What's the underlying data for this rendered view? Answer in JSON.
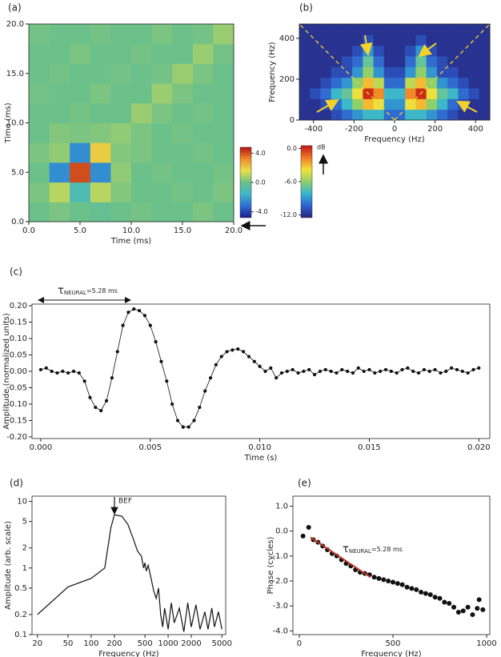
{
  "chart_data": [
    {
      "type": "heatmap",
      "panel_label": "(a)",
      "xlabel": "Time (ms)",
      "ylabel": "Time (ms)",
      "xlim": [
        0,
        20
      ],
      "ylim": [
        0,
        20
      ],
      "xticks": [
        {
          "value": 0,
          "label": "0.0"
        },
        {
          "value": 5,
          "label": "5.0"
        },
        {
          "value": 10,
          "label": "10.0"
        },
        {
          "value": 15,
          "label": "15.0"
        },
        {
          "value": 20,
          "label": "20.0"
        }
      ],
      "yticks": [
        {
          "value": 0,
          "label": "0.0"
        },
        {
          "value": 5,
          "label": "5.0"
        },
        {
          "value": 10,
          "label": "10.0"
        },
        {
          "value": 15,
          "label": "15.0"
        },
        {
          "value": 20,
          "label": "20.0"
        }
      ],
      "z": [
        [
          0,
          0.2,
          0,
          -0.2,
          0,
          0.1,
          0,
          0,
          0.2,
          0
        ],
        [
          0.2,
          1.0,
          -1.0,
          1.0,
          0.3,
          0,
          0,
          0.1,
          0,
          0.2
        ],
        [
          0,
          -2.5,
          4.0,
          -2.5,
          0.5,
          0,
          0.1,
          0,
          0,
          0.1
        ],
        [
          0.2,
          0.5,
          -2.5,
          2.0,
          0.3,
          0.2,
          0,
          0,
          0.1,
          0
        ],
        [
          0,
          0.3,
          0.2,
          0.3,
          0.5,
          0.2,
          0,
          0.1,
          0,
          0
        ],
        [
          0,
          0,
          0.1,
          0,
          0,
          0.6,
          0.2,
          0,
          0.1,
          0
        ],
        [
          0.1,
          0,
          0,
          0.2,
          0,
          0,
          0.6,
          0.2,
          0,
          0
        ],
        [
          0,
          0.1,
          0,
          0,
          0.1,
          0,
          0.1,
          0.6,
          0.2,
          0
        ],
        [
          0,
          0,
          0.2,
          0,
          0,
          0.1,
          0,
          0,
          0.6,
          0.1
        ],
        [
          0.1,
          0,
          0,
          0.1,
          0,
          0,
          0.2,
          0,
          0.1,
          0.6
        ]
      ],
      "colorbar": {
        "clim": [
          -4.8,
          4.8
        ],
        "colors": [
          "#1c1c8c",
          "#2a6fd6",
          "#3fb6c8",
          "#6cc08a",
          "#e6e24a",
          "#f08a2a",
          "#b01212"
        ],
        "ticks": [
          {
            "value": 4,
            "label": "4.0"
          },
          {
            "value": 0,
            "label": "0.0"
          },
          {
            "value": -4,
            "label": "-4.0"
          }
        ]
      }
    },
    {
      "type": "heatmap",
      "panel_label": "(b)",
      "xlabel": "Frequency (Hz)",
      "ylabel": "Frequency (Hz)",
      "xlim": [
        -470,
        470
      ],
      "ylim": [
        0,
        470
      ],
      "xticks": [
        -400,
        -200,
        0,
        200,
        400
      ],
      "yticks": [
        0,
        200,
        400
      ],
      "z": [
        [
          -12,
          -12,
          -12,
          -11,
          -10,
          -9,
          -8,
          -8,
          -10,
          -10,
          -8,
          -8,
          -9,
          -10,
          -11,
          -12,
          -12,
          -12
        ],
        [
          -12,
          -12,
          -11,
          -10,
          -8,
          -6,
          -3,
          -4,
          -9,
          -9,
          -4,
          -3,
          -6,
          -8,
          -10,
          -11,
          -12,
          -12
        ],
        [
          -12,
          -11,
          -10,
          -8,
          -7,
          -4,
          0,
          -2,
          -8,
          -8,
          -2,
          0,
          -4,
          -7,
          -8,
          -10,
          -11,
          -12
        ],
        [
          -12,
          -12,
          -11,
          -10,
          -9,
          -6,
          -3,
          -5,
          -10,
          -10,
          -5,
          -3,
          -6,
          -9,
          -10,
          -11,
          -12,
          -12
        ],
        [
          -12,
          -12,
          -12,
          -11,
          -11,
          -9,
          -6,
          -9,
          -11,
          -11,
          -9,
          -6,
          -9,
          -11,
          -11,
          -12,
          -12,
          -12
        ],
        [
          -12,
          -12,
          -12,
          -12,
          -11,
          -10,
          -7,
          -10,
          -12,
          -12,
          -10,
          -7,
          -10,
          -11,
          -12,
          -12,
          -12,
          -12
        ],
        [
          -12,
          -12,
          -12,
          -12,
          -12,
          -11,
          -9,
          -11,
          -12,
          -12,
          -11,
          -9,
          -11,
          -12,
          -12,
          -12,
          -12,
          -12
        ],
        [
          -12,
          -12,
          -12,
          -12,
          -12,
          -12,
          -11,
          -12,
          -12,
          -12,
          -12,
          -11,
          -12,
          -12,
          -12,
          -12,
          -12,
          -12
        ],
        [
          -12,
          -12,
          -12,
          -12,
          -12,
          -12,
          -12,
          -12,
          -12,
          -12,
          -12,
          -12,
          -12,
          -12,
          -12,
          -12,
          -12,
          -12
        ]
      ],
      "colorbar": {
        "clim": [
          -12.5,
          0.5
        ],
        "unit": "dB",
        "colors": [
          "#26267e",
          "#2f5fcf",
          "#35b6d0",
          "#8fd06a",
          "#f5e23a",
          "#f07a24",
          "#c01616"
        ],
        "ticks": [
          {
            "value": 0,
            "label": "0.0"
          },
          {
            "value": -6,
            "label": "-6.0"
          },
          {
            "value": -12,
            "label": "-12.0"
          }
        ]
      }
    },
    {
      "type": "line",
      "panel_label": "(c)",
      "xlabel": "Time (s)",
      "ylabel": "Amplitude (normalized units)",
      "markers": true,
      "color": "#111111",
      "annotation": {
        "symbol": "τ",
        "subscript": "NEURAL",
        "text": "=5.28 ms"
      },
      "xlim": [
        -0.0004,
        0.0205
      ],
      "ylim": [
        -0.205,
        0.205
      ],
      "xticks": [
        {
          "value": 0,
          "label": "0.000"
        },
        {
          "value": 0.005,
          "label": "0.005"
        },
        {
          "value": 0.01,
          "label": "0.010"
        },
        {
          "value": 0.015,
          "label": "0.015"
        },
        {
          "value": 0.02,
          "label": "0.020"
        }
      ],
      "yticks": [
        {
          "value": 0.2,
          "label": "0.20"
        },
        {
          "value": 0.15,
          "label": "0.15"
        },
        {
          "value": 0.1,
          "label": "0.10"
        },
        {
          "value": 0.05,
          "label": "0.05"
        },
        {
          "value": 0,
          "label": "0.00"
        },
        {
          "value": -0.05,
          "label": "-0.05"
        },
        {
          "value": -0.1,
          "label": "-0.10"
        },
        {
          "value": -0.15,
          "label": "-0.15"
        },
        {
          "value": -0.2,
          "label": "-0.20"
        }
      ],
      "x": [
        0,
        0.00025,
        0.0005,
        0.00075,
        0.001,
        0.00125,
        0.0015,
        0.00175,
        0.002,
        0.00225,
        0.0025,
        0.00275,
        0.003,
        0.00325,
        0.0035,
        0.00375,
        0.004,
        0.00425,
        0.0045,
        0.00475,
        0.005,
        0.00525,
        0.0055,
        0.00575,
        0.006,
        0.00625,
        0.0065,
        0.00675,
        0.007,
        0.00725,
        0.0075,
        0.00775,
        0.008,
        0.00825,
        0.0085,
        0.00875,
        0.009,
        0.00925,
        0.0095,
        0.00975,
        0.01,
        0.01025,
        0.0105,
        0.01075,
        0.011,
        0.01125,
        0.0115,
        0.01175,
        0.012,
        0.01225,
        0.0125,
        0.01275,
        0.013,
        0.01325,
        0.0135,
        0.01375,
        0.014,
        0.01425,
        0.0145,
        0.01475,
        0.015,
        0.01525,
        0.0155,
        0.01575,
        0.016,
        0.01625,
        0.0165,
        0.01675,
        0.017,
        0.01725,
        0.0175,
        0.01775,
        0.018,
        0.01825,
        0.0185,
        0.01875,
        0.019,
        0.01925,
        0.0195,
        0.01975,
        0.02
      ],
      "values": [
        0.005,
        0.01,
        0,
        -0.005,
        0,
        -0.005,
        0,
        -0.005,
        -0.03,
        -0.08,
        -0.11,
        -0.12,
        -0.09,
        -0.02,
        0.06,
        0.14,
        0.18,
        0.19,
        0.185,
        0.17,
        0.14,
        0.09,
        0.03,
        -0.03,
        -0.1,
        -0.15,
        -0.17,
        -0.17,
        -0.15,
        -0.11,
        -0.06,
        -0.02,
        0.02,
        0.045,
        0.06,
        0.065,
        0.068,
        0.06,
        0.045,
        0.03,
        0.015,
        0,
        0.01,
        -0.02,
        -0.005,
        0,
        0.005,
        -0.005,
        0,
        0.005,
        -0.01,
        0,
        0.005,
        0,
        -0.005,
        0.005,
        0,
        -0.005,
        0.01,
        0,
        0.005,
        -0.005,
        0,
        0.005,
        0,
        -0.005,
        0.005,
        0.01,
        0,
        -0.005,
        0.005,
        0,
        0.005,
        -0.005,
        0,
        0.01,
        0.005,
        0,
        -0.005,
        0.005,
        0.01
      ]
    },
    {
      "type": "line",
      "panel_label": "(d)",
      "xlabel": "Frequency (Hz)",
      "ylabel": "Amplitude (arb. scale)",
      "xlog": true,
      "ylog": true,
      "color": "#111111",
      "annotation": "BEF",
      "xlim": [
        17,
        5600
      ],
      "ylim": [
        0.1,
        12
      ],
      "xticks": [
        20,
        50,
        100,
        200,
        500,
        1000,
        2000,
        5000
      ],
      "yticks": [
        0.1,
        0.2,
        0.5,
        1,
        2,
        5,
        10
      ],
      "x": [
        20,
        50,
        100,
        150,
        180,
        200,
        250,
        300,
        350,
        400,
        450,
        480,
        500,
        520,
        550,
        600,
        650,
        700,
        750,
        800,
        850,
        900,
        1000,
        1100,
        1200,
        1400,
        1600,
        1800,
        2000,
        2300,
        2600,
        3000,
        3300,
        3700,
        4000,
        4500,
        5000
      ],
      "values": [
        0.2,
        0.52,
        0.7,
        1.0,
        4,
        6.3,
        6.0,
        4.5,
        2.8,
        1.8,
        1.5,
        1.0,
        1.2,
        0.9,
        1.1,
        0.7,
        0.45,
        0.35,
        0.5,
        0.2,
        0.13,
        0.25,
        0.12,
        0.3,
        0.15,
        0.25,
        0.11,
        0.3,
        0.13,
        0.28,
        0.12,
        0.22,
        0.12,
        0.25,
        0.13,
        0.22,
        0.12
      ]
    },
    {
      "type": "scatter",
      "panel_label": "(e)",
      "xlabel": "Frequency (Hz)",
      "ylabel": "Phase (cycles)",
      "color": "#111111",
      "fit_color": "#c0392b",
      "annotation": {
        "symbol": "τ",
        "subscript": "NEURAL",
        "text": "=5.28 ms"
      },
      "xlim": [
        -34,
        1017
      ],
      "ylim": [
        -4.15,
        1.4
      ],
      "xticks": [
        0,
        500,
        1000
      ],
      "yticks": [
        {
          "value": 1,
          "label": "1.0"
        },
        {
          "value": 0,
          "label": "0.0"
        },
        {
          "value": -1,
          "label": "-1.0"
        },
        {
          "value": -2,
          "label": "-2.0"
        },
        {
          "value": -3,
          "label": "-3.0"
        },
        {
          "value": -4,
          "label": "-4.0"
        }
      ],
      "x": [
        20,
        50,
        75,
        100,
        125,
        150,
        175,
        200,
        225,
        250,
        275,
        300,
        325,
        350,
        375,
        400,
        425,
        450,
        475,
        500,
        525,
        550,
        575,
        600,
        625,
        650,
        675,
        700,
        725,
        750,
        775,
        800,
        825,
        850,
        875,
        900,
        925,
        950,
        960,
        980
      ],
      "values": [
        -0.2,
        0.15,
        -0.35,
        -0.45,
        -0.6,
        -0.75,
        -0.9,
        -1.0,
        -1.15,
        -1.3,
        -1.4,
        -1.55,
        -1.65,
        -1.7,
        -1.75,
        -1.85,
        -1.9,
        -1.95,
        -2.0,
        -2.05,
        -2.1,
        -2.15,
        -2.25,
        -2.3,
        -2.35,
        -2.45,
        -2.5,
        -2.55,
        -2.65,
        -2.7,
        -2.85,
        -2.9,
        -3.05,
        -3.25,
        -3.2,
        -3.05,
        -3.35,
        -3.1,
        -2.75,
        -3.15
      ],
      "fit_x": [
        60,
        380
      ],
      "fit_values": [
        -0.25,
        -1.85
      ]
    }
  ]
}
